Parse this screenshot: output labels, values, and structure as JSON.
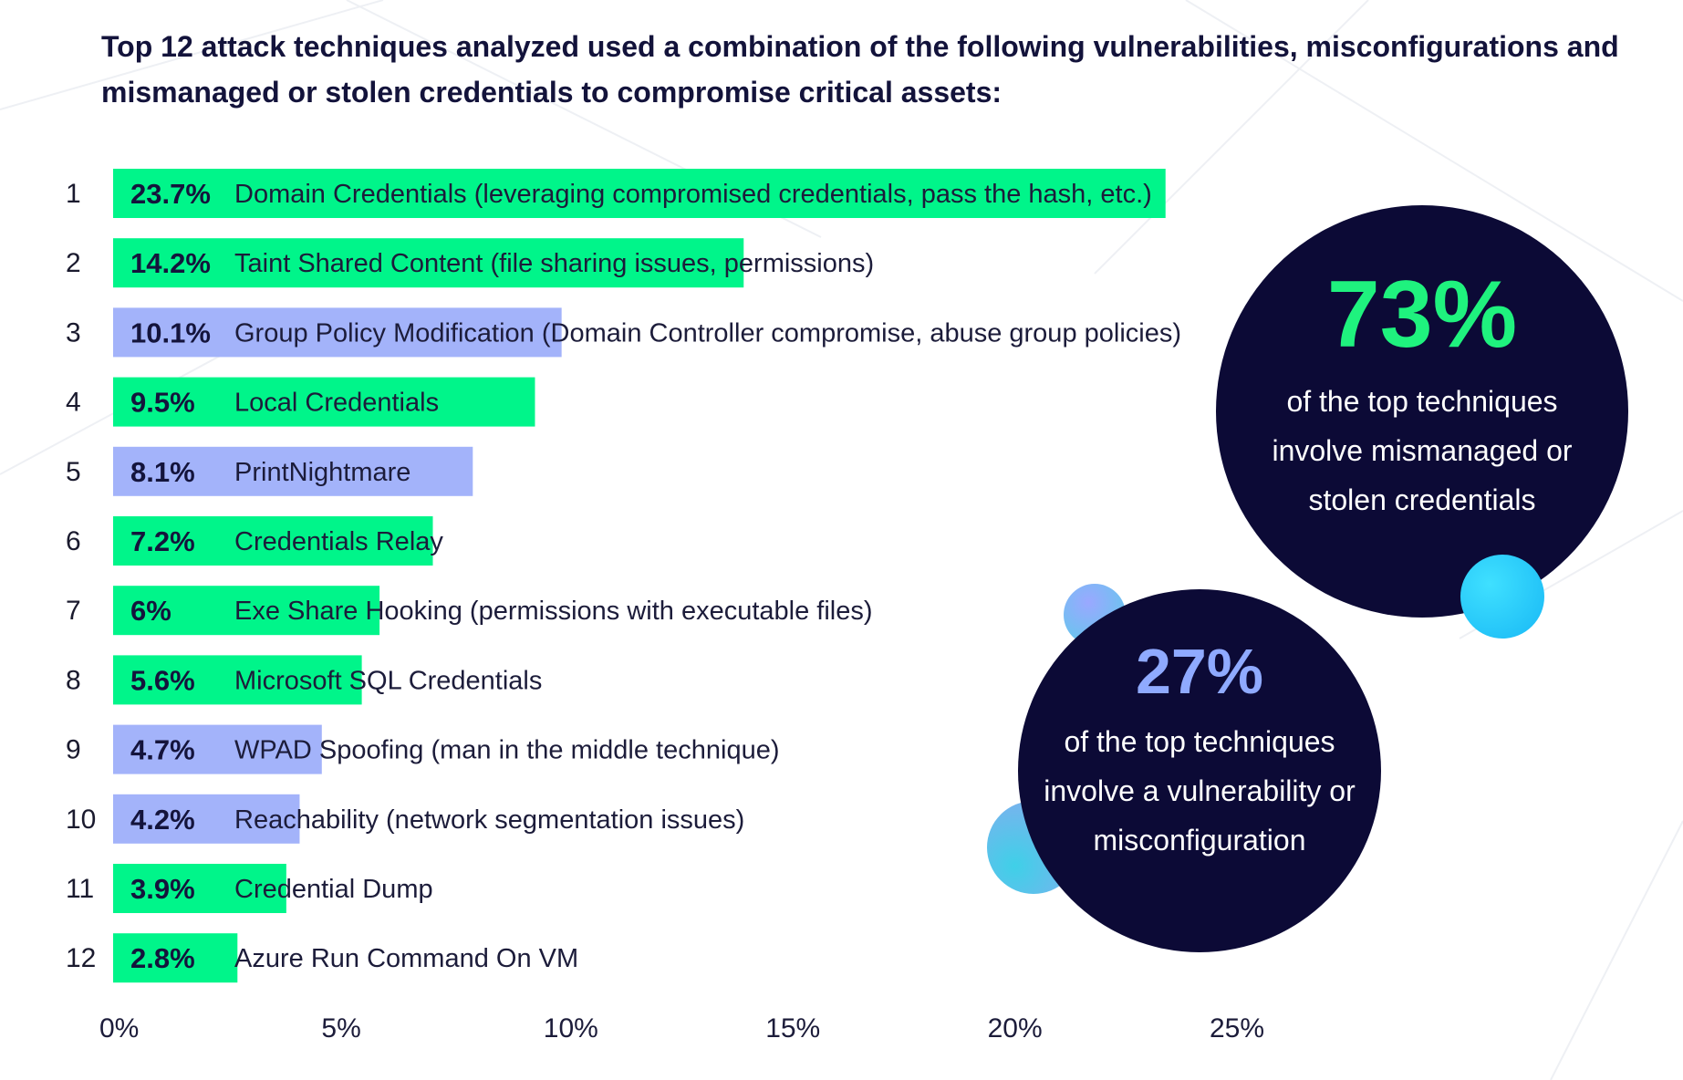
{
  "title": "Top 12 attack techniques analyzed used a combination of the following vulnerabilities, misconfigurations and mismanaged or stolen credentials to compromise critical assets:",
  "colors": {
    "credentials": "#00f58a",
    "vulnerability": "#a3b3fa",
    "circle": "#0c0a36",
    "accent_green": "#1ff27e",
    "accent_blue": "#8faaff"
  },
  "chart_data": {
    "type": "bar",
    "orientation": "horizontal",
    "x_ticks": [
      "0%",
      "5%",
      "10%",
      "15%",
      "20%",
      "25%"
    ],
    "xlim": [
      0,
      25
    ],
    "grid": false,
    "rows": [
      {
        "rank": "1",
        "value": 23.7,
        "value_label": "23.7%",
        "label": "Domain Credentials (leveraging compromised credentials, pass the hash, etc.)",
        "category": "credentials"
      },
      {
        "rank": "2",
        "value": 14.2,
        "value_label": "14.2%",
        "label": "Taint Shared Content (file sharing issues, permissions)",
        "category": "credentials"
      },
      {
        "rank": "3",
        "value": 10.1,
        "value_label": "10.1%",
        "label": "Group Policy Modification (Domain Controller compromise, abuse group policies)",
        "category": "vulnerability"
      },
      {
        "rank": "4",
        "value": 9.5,
        "value_label": "9.5%",
        "label": "Local Credentials",
        "category": "credentials"
      },
      {
        "rank": "5",
        "value": 8.1,
        "value_label": "8.1%",
        "label": "PrintNightmare",
        "category": "vulnerability"
      },
      {
        "rank": "6",
        "value": 7.2,
        "value_label": "7.2%",
        "label": "Credentials Relay",
        "category": "credentials"
      },
      {
        "rank": "7",
        "value": 6,
        "value_label": "6%",
        "label": "Exe Share Hooking (permissions with executable files)",
        "category": "credentials"
      },
      {
        "rank": "8",
        "value": 5.6,
        "value_label": "5.6%",
        "label": "Microsoft SQL Credentials",
        "category": "credentials"
      },
      {
        "rank": "9",
        "value": 4.7,
        "value_label": "4.7%",
        "label": "WPAD Spoofing (man in the middle technique)",
        "category": "vulnerability"
      },
      {
        "rank": "10",
        "value": 4.2,
        "value_label": "4.2%",
        "label": "Reachability (network segmentation issues)",
        "category": "vulnerability"
      },
      {
        "rank": "11",
        "value": 3.9,
        "value_label": "3.9%",
        "label": "Credential Dump",
        "category": "credentials"
      },
      {
        "rank": "12",
        "value": 2.8,
        "value_label": "2.8%",
        "label": "Azure Run Command On VM",
        "category": "credentials"
      }
    ]
  },
  "callouts": {
    "credentials": {
      "value": "73%",
      "text": "of the top techniques involve mismanaged or stolen credentials"
    },
    "vulnerability": {
      "value": "27%",
      "text": "of the top techniques involve a vulnerability or misconfiguration"
    }
  }
}
